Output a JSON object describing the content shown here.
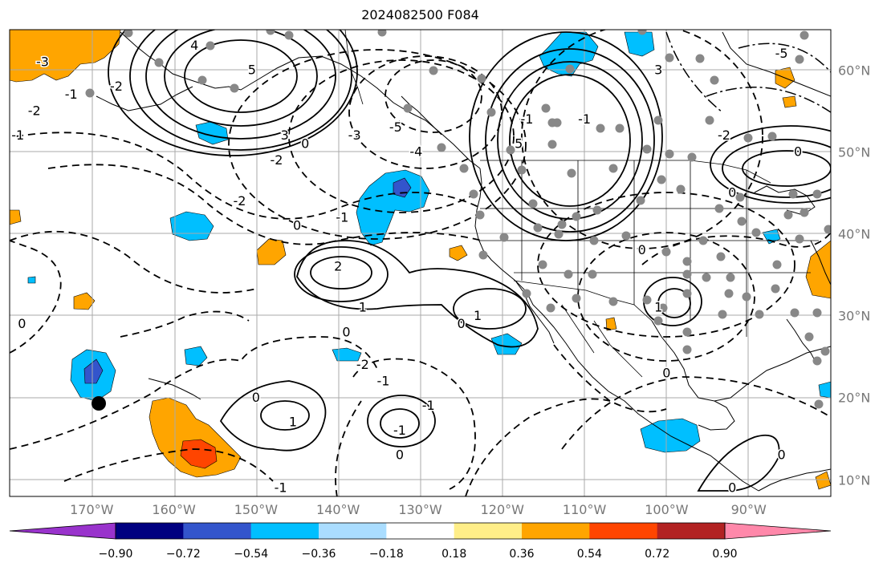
{
  "title": "2024082500 F084",
  "map": {
    "lon_range": [
      -180,
      -80
    ],
    "lat_range": [
      8,
      65
    ],
    "grid": true,
    "lon_labels": [
      "170°W",
      "160°W",
      "150°W",
      "140°W",
      "130°W",
      "120°W",
      "110°W",
      "100°W",
      "90°W"
    ],
    "lat_labels": [
      "60°N",
      "50°N",
      "40°N",
      "30°N",
      "20°N",
      "10°N"
    ],
    "contour_labels": [
      {
        "text": "-3",
        "lon": -176,
        "lat": 61
      },
      {
        "text": "-2",
        "lon": -177,
        "lat": 55
      },
      {
        "text": "-1",
        "lon": -172.5,
        "lat": 57
      },
      {
        "text": "-1",
        "lon": -179,
        "lat": 52
      },
      {
        "text": "-2",
        "lon": -167,
        "lat": 58
      },
      {
        "text": "4",
        "lon": -157.5,
        "lat": 63
      },
      {
        "text": "5",
        "lon": -150.5,
        "lat": 60
      },
      {
        "text": "3",
        "lon": -146.5,
        "lat": 52
      },
      {
        "text": "0",
        "lon": -144,
        "lat": 51
      },
      {
        "text": "-2",
        "lon": -147.5,
        "lat": 49
      },
      {
        "text": "-3",
        "lon": -138,
        "lat": 52
      },
      {
        "text": "-5",
        "lon": -133,
        "lat": 53
      },
      {
        "text": "-4",
        "lon": -130.5,
        "lat": 50
      },
      {
        "text": "-2",
        "lon": -152,
        "lat": 44
      },
      {
        "text": "-1",
        "lon": -139.5,
        "lat": 42
      },
      {
        "text": "0",
        "lon": -145,
        "lat": 41
      },
      {
        "text": "2",
        "lon": -140,
        "lat": 36
      },
      {
        "text": "1",
        "lon": -137,
        "lat": 31
      },
      {
        "text": "0",
        "lon": -139,
        "lat": 28
      },
      {
        "text": "1",
        "lon": -123,
        "lat": 30
      },
      {
        "text": "0",
        "lon": -125,
        "lat": 29
      },
      {
        "text": "-2",
        "lon": -137,
        "lat": 24
      },
      {
        "text": "-1",
        "lon": -134.5,
        "lat": 22
      },
      {
        "text": "0",
        "lon": -178.5,
        "lat": 29
      },
      {
        "text": "0",
        "lon": -150,
        "lat": 20
      },
      {
        "text": "1",
        "lon": -145.5,
        "lat": 17
      },
      {
        "text": "-1",
        "lon": -132.5,
        "lat": 16
      },
      {
        "text": "0",
        "lon": -132.5,
        "lat": 13
      },
      {
        "text": "-1",
        "lon": -129,
        "lat": 19
      },
      {
        "text": "-1",
        "lon": -147,
        "lat": 9
      },
      {
        "text": "0",
        "lon": -100,
        "lat": 23
      },
      {
        "text": "1",
        "lon": -101,
        "lat": 31
      },
      {
        "text": "0",
        "lon": -103,
        "lat": 38
      },
      {
        "text": "-1",
        "lon": -117,
        "lat": 54
      },
      {
        "text": "-1",
        "lon": -110,
        "lat": 54
      },
      {
        "text": "5",
        "lon": -118,
        "lat": 51
      },
      {
        "text": "3",
        "lon": -101,
        "lat": 60
      },
      {
        "text": "-5",
        "lon": -86,
        "lat": 62
      },
      {
        "text": "0",
        "lon": -84,
        "lat": 50
      },
      {
        "text": "-2",
        "lon": -93,
        "lat": 52
      },
      {
        "text": "0",
        "lon": -92,
        "lat": 45
      },
      {
        "text": "0",
        "lon": -86,
        "lat": 13
      },
      {
        "text": "0",
        "lon": -92,
        "lat": 9
      }
    ]
  },
  "colorbar": {
    "ticks": [
      "−0.90",
      "−0.72",
      "−0.54",
      "−0.36",
      "−0.18",
      "0.18",
      "0.36",
      "0.54",
      "0.72",
      "0.90"
    ],
    "colors": [
      "#9933cc",
      "#000080",
      "#3355cc",
      "#00bfff",
      "#aaddff",
      "#ffffff",
      "#ffee88",
      "#ffa500",
      "#ff4500",
      "#b22222",
      "#ff88aa"
    ]
  }
}
